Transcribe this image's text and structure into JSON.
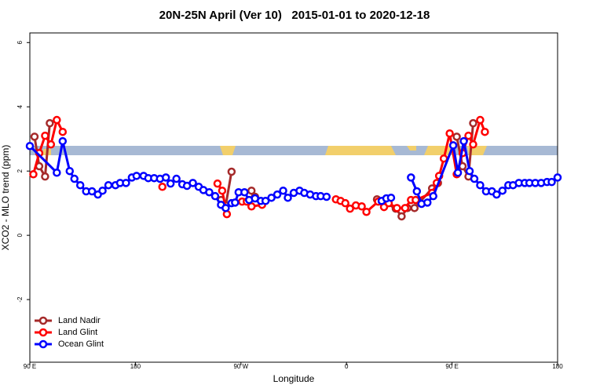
{
  "chart_data": {
    "type": "line",
    "title": "20N-25N April (Ver 10)   2015-01-01 to 2020-12-18",
    "xlabel": "Longitude",
    "ylabel": "XCO2 - MLO trend (ppm)",
    "xlim": [
      90,
      540
    ],
    "ylim": [
      -3.95,
      6.3
    ],
    "xticks": [
      {
        "value": 90,
        "label": "90 E"
      },
      {
        "value": 180,
        "label": "180"
      },
      {
        "value": 270,
        "label": "90 W"
      },
      {
        "value": 360,
        "label": "0"
      },
      {
        "value": 450,
        "label": "90 E"
      },
      {
        "value": 540,
        "label": "180"
      }
    ],
    "yticks": [
      -2,
      0,
      2,
      4,
      6
    ],
    "legend": "bottom-left",
    "series": [
      {
        "name": "Land Nadir",
        "color": "#a52a2a",
        "x": [
          94,
          98,
          103,
          107,
          null,
          253,
          257,
          262,
          null,
          279,
          282,
          null,
          386,
          394,
          402,
          407,
          412,
          418,
          433,
          438,
          null,
          454,
          459,
          464,
          468
        ],
        "values": [
          3.07,
          2.15,
          1.83,
          3.49,
          null,
          1.1,
          0.93,
          1.98,
          null,
          1.39,
          1.2,
          null,
          1.12,
          1.0,
          0.83,
          0.59,
          0.85,
          0.85,
          1.46,
          1.63,
          null,
          3.07,
          2.15,
          1.83,
          3.49
        ]
      },
      {
        "name": "Land Glint",
        "color": "#ff0000",
        "x": [
          93,
          98,
          103,
          108,
          113,
          118,
          null,
          203,
          null,
          250,
          254,
          258,
          null,
          271,
          275,
          279,
          288,
          null,
          351,
          355,
          359,
          363,
          368,
          373,
          377,
          387,
          392,
          396,
          403,
          410,
          415,
          419,
          433,
          437,
          439,
          443,
          448,
          454,
          459,
          464,
          468,
          474,
          478
        ],
        "values": [
          1.9,
          2.56,
          3.1,
          2.83,
          3.59,
          3.22,
          null,
          1.51,
          null,
          1.61,
          1.39,
          0.66,
          null,
          1.05,
          1.05,
          0.9,
          0.95,
          null,
          1.12,
          1.07,
          1.0,
          0.83,
          0.93,
          0.9,
          0.73,
          1.05,
          0.88,
          1.0,
          0.85,
          0.85,
          1.1,
          1.1,
          1.32,
          1.63,
          1.85,
          2.39,
          3.17,
          1.9,
          2.56,
          3.1,
          2.83,
          3.59,
          3.22
        ]
      },
      {
        "name": "Ocean Glint",
        "color": "#0000ff",
        "x": [
          90,
          113,
          118,
          124,
          128,
          133,
          138,
          143,
          148,
          152,
          157,
          163,
          167,
          172,
          177,
          181,
          187,
          191,
          196,
          201,
          206,
          210,
          215,
          220,
          224,
          229,
          234,
          238,
          243,
          248,
          253,
          257,
          262,
          265,
          268,
          273,
          277,
          282,
          287,
          291,
          296,
          301,
          306,
          310,
          315,
          320,
          324,
          329,
          334,
          338,
          343,
          null,
          390,
          394,
          398,
          null,
          415,
          420,
          424,
          429,
          434,
          451,
          455,
          460,
          465,
          469,
          474,
          479,
          484,
          488,
          493,
          498,
          502,
          507,
          512,
          516,
          521,
          526,
          531,
          535,
          540
        ],
        "values": [
          2.78,
          1.95,
          2.93,
          2.0,
          1.76,
          1.56,
          1.37,
          1.37,
          1.27,
          1.39,
          1.56,
          1.56,
          1.63,
          1.63,
          1.8,
          1.85,
          1.85,
          1.78,
          1.78,
          1.76,
          1.8,
          1.61,
          1.76,
          1.59,
          1.54,
          1.63,
          1.51,
          1.41,
          1.34,
          1.22,
          0.95,
          0.85,
          1.0,
          1.02,
          1.34,
          1.34,
          1.1,
          1.15,
          1.07,
          1.07,
          1.17,
          1.27,
          1.39,
          1.17,
          1.32,
          1.39,
          1.32,
          1.27,
          1.22,
          1.22,
          1.2,
          null,
          1.07,
          1.15,
          1.17,
          null,
          1.8,
          1.37,
          0.98,
          1.02,
          1.22,
          2.8,
          1.95,
          2.93,
          2.0,
          1.76,
          1.56,
          1.37,
          1.37,
          1.27,
          1.39,
          1.56,
          1.56,
          1.63,
          1.63,
          1.63,
          1.63,
          1.63,
          1.66,
          1.66,
          1.8
        ]
      }
    ]
  }
}
